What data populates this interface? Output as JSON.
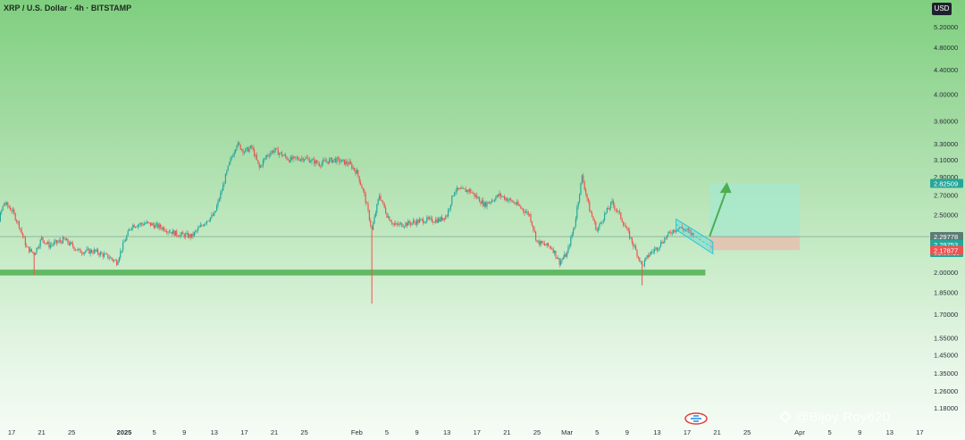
{
  "header": {
    "title": "XRP / U.S. Dollar · 4h · BITSTAMP",
    "currency_button": "USD"
  },
  "watermark": {
    "text": "@Bijoy Roy620"
  },
  "colors": {
    "up": "#26a69a",
    "down": "#ef5350",
    "support_zone": "#4caf50",
    "target_zone": "#a5e8d0",
    "stop_zone": "#e6bfb0",
    "channel": "#26c6da",
    "arrow": "#4caf50"
  },
  "chart_data": {
    "type": "candlestick",
    "symbol": "XRP / U.S. Dollar",
    "interval": "4h",
    "exchange": "BITSTAMP",
    "y_scale": "log",
    "y_ticks": [
      "5.20000",
      "4.80000",
      "4.40000",
      "4.00000",
      "3.60000",
      "3.30000",
      "3.10000",
      "2.90000",
      "2.70000",
      "2.50000",
      "2.00000",
      "1.85000",
      "1.70000",
      "1.55000",
      "1.45000",
      "1.35000",
      "1.26000",
      "1.18000"
    ],
    "x_ticks": [
      "17",
      "21",
      "25",
      "2025",
      "5",
      "9",
      "13",
      "17",
      "21",
      "25",
      "Feb",
      "5",
      "9",
      "13",
      "17",
      "21",
      "25",
      "Mar",
      "5",
      "9",
      "13",
      "17",
      "21",
      "25",
      "Apr",
      "5",
      "9",
      "13",
      "17"
    ],
    "price_labels": [
      {
        "value": "2.82509",
        "kind": "target"
      },
      {
        "value": "2.29778",
        "kind": "reference"
      },
      {
        "value": "2.29753",
        "kind": "last"
      },
      {
        "value": "01:58:10",
        "kind": "countdown"
      },
      {
        "value": "2.17877",
        "kind": "stop"
      }
    ],
    "price_path": [
      [
        "2024-12-13",
        2.4
      ],
      [
        "2024-12-15",
        2.38
      ],
      [
        "2024-12-16",
        2.62
      ],
      [
        "2024-12-17",
        2.55
      ],
      [
        "2024-12-18",
        2.4
      ],
      [
        "2024-12-19",
        2.2
      ],
      [
        "2024-12-20",
        2.15
      ],
      [
        "2024-12-21",
        2.28
      ],
      [
        "2024-12-22",
        2.22
      ],
      [
        "2024-12-24",
        2.27
      ],
      [
        "2024-12-26",
        2.17
      ],
      [
        "2024-12-28",
        2.17
      ],
      [
        "2024-12-30",
        2.12
      ],
      [
        "2024-12-31",
        2.08
      ],
      [
        "2025-01-01",
        2.25
      ],
      [
        "2025-01-02",
        2.4
      ],
      [
        "2025-01-04",
        2.42
      ],
      [
        "2025-01-06",
        2.38
      ],
      [
        "2025-01-08",
        2.32
      ],
      [
        "2025-01-10",
        2.3
      ],
      [
        "2025-01-12",
        2.45
      ],
      [
        "2025-01-13",
        2.5
      ],
      [
        "2025-01-14",
        2.75
      ],
      [
        "2025-01-15",
        3.05
      ],
      [
        "2025-01-16",
        3.3
      ],
      [
        "2025-01-17",
        3.2
      ],
      [
        "2025-01-18",
        3.25
      ],
      [
        "2025-01-19",
        3.0
      ],
      [
        "2025-01-20",
        3.15
      ],
      [
        "2025-01-21",
        3.22
      ],
      [
        "2025-01-23",
        3.1
      ],
      [
        "2025-01-25",
        3.12
      ],
      [
        "2025-01-27",
        3.05
      ],
      [
        "2025-01-28",
        3.08
      ],
      [
        "2025-01-29",
        3.1
      ],
      [
        "2025-01-31",
        3.05
      ],
      [
        "2025-02-01",
        2.95
      ],
      [
        "2025-02-02",
        2.7
      ],
      [
        "2025-02-03",
        2.35
      ],
      [
        "2025-02-04",
        2.7
      ],
      [
        "2025-02-05",
        2.5
      ],
      [
        "2025-02-06",
        2.4
      ],
      [
        "2025-02-08",
        2.42
      ],
      [
        "2025-02-10",
        2.45
      ],
      [
        "2025-02-12",
        2.45
      ],
      [
        "2025-02-13",
        2.5
      ],
      [
        "2025-02-14",
        2.75
      ],
      [
        "2025-02-16",
        2.75
      ],
      [
        "2025-02-18",
        2.6
      ],
      [
        "2025-02-19",
        2.65
      ],
      [
        "2025-02-20",
        2.7
      ],
      [
        "2025-02-22",
        2.62
      ],
      [
        "2025-02-24",
        2.5
      ],
      [
        "2025-02-25",
        2.25
      ],
      [
        "2025-02-27",
        2.2
      ],
      [
        "2025-02-28",
        2.08
      ],
      [
        "2025-03-01",
        2.15
      ],
      [
        "2025-03-02",
        2.4
      ],
      [
        "2025-03-03",
        2.9
      ],
      [
        "2025-03-04",
        2.55
      ],
      [
        "2025-03-05",
        2.35
      ],
      [
        "2025-03-06",
        2.5
      ],
      [
        "2025-03-07",
        2.62
      ],
      [
        "2025-03-08",
        2.5
      ],
      [
        "2025-03-09",
        2.35
      ],
      [
        "2025-03-10",
        2.2
      ],
      [
        "2025-03-11",
        2.05
      ],
      [
        "2025-03-12",
        2.15
      ],
      [
        "2025-03-13",
        2.2
      ],
      [
        "2025-03-14",
        2.28
      ],
      [
        "2025-03-15",
        2.35
      ],
      [
        "2025-03-16",
        2.38
      ],
      [
        "2025-03-17",
        2.35
      ],
      [
        "2025-03-18",
        2.3
      ]
    ],
    "support_zone": {
      "from": "2024-12-13",
      "to": "2025-03-18",
      "low": 1.975,
      "high": 2.02
    },
    "channel": {
      "from": "2025-03-16",
      "to": "2025-03-19",
      "upper": [
        2.46,
        2.25
      ],
      "lower": [
        2.36,
        2.15
      ]
    },
    "target_zone": {
      "from": "2025-03-20",
      "to": "2025-04-01",
      "low": 2.29778,
      "high": 2.82509
    },
    "stop_zone": {
      "from": "2025-03-20",
      "to": "2025-04-01",
      "low": 2.17877,
      "high": 2.29778
    },
    "projection_arrow": {
      "from": [
        "2025-03-20",
        2.3
      ],
      "to": [
        "2025-03-21",
        2.8
      ]
    },
    "special_wicks": [
      {
        "date": "2024-12-20",
        "low": 1.98
      },
      {
        "date": "2025-02-03",
        "low": 1.77
      },
      {
        "date": "2025-03-11",
        "low": 1.9
      }
    ]
  }
}
